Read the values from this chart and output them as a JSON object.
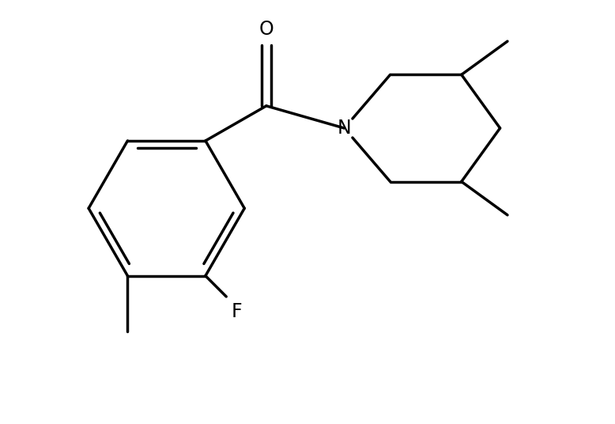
{
  "background_color": "#ffffff",
  "line_color": "#000000",
  "line_width": 2.5,
  "font_size": 17,
  "figsize": [
    7.78,
    5.36
  ],
  "dpi": 100,
  "xlim": [
    0.3,
    8.5
  ],
  "ylim": [
    0.2,
    5.8
  ]
}
